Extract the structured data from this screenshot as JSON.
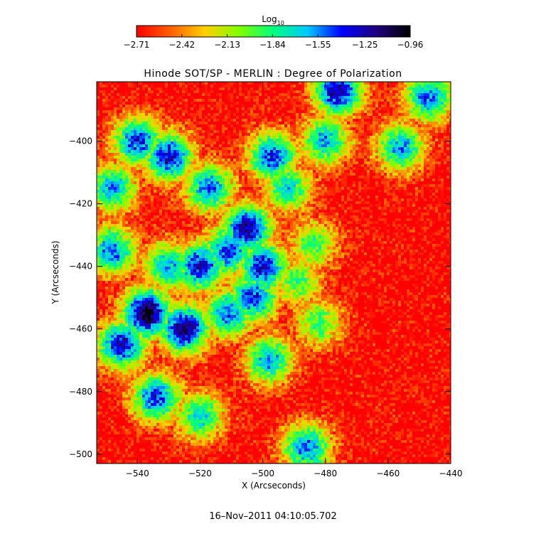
{
  "chart_data": {
    "type": "heatmap",
    "title": "Hinode SOT/SP - MERLIN : Degree of Polarization",
    "xlabel": "X (Arcseconds)",
    "ylabel": "Y (Arcseconds)",
    "xlim": [
      -553,
      -440
    ],
    "ylim": [
      -503,
      -381
    ],
    "x_ticks": [
      -540,
      -520,
      -500,
      -480,
      -460,
      -440
    ],
    "x_tick_labels": [
      "−540",
      "−520",
      "−500",
      "−480",
      "−460",
      "−440"
    ],
    "y_ticks": [
      -400,
      -420,
      -440,
      -460,
      -480,
      -500
    ],
    "y_tick_labels": [
      "−400",
      "−420",
      "−440",
      "−460",
      "−480",
      "−500"
    ],
    "colorbar": {
      "label_base": "Log",
      "label_sub": "10",
      "range": [
        -2.71,
        -0.96
      ],
      "ticks": [
        -2.71,
        -2.42,
        -2.13,
        -1.84,
        -1.55,
        -1.25,
        -0.96
      ],
      "tick_labels": [
        "−2.71",
        "−2.42",
        "−2.13",
        "−1.84",
        "−1.55",
        "−1.25",
        "−0.96"
      ],
      "colormap": [
        "#ff0000",
        "#ff6000",
        "#ffd000",
        "#80ff00",
        "#00ff80",
        "#00c8ff",
        "#0000ff",
        "#200080",
        "#000000"
      ]
    },
    "timestamp": "16–Nov–2011 04:10:05.702",
    "grid": false,
    "legend": "none",
    "high_polarization_regions": [
      {
        "x": -537,
        "y": -455,
        "value": -1.0
      },
      {
        "x": -525,
        "y": -460,
        "value": -1.1
      },
      {
        "x": -520,
        "y": -440,
        "value": -1.3
      },
      {
        "x": -505,
        "y": -428,
        "value": -1.2
      },
      {
        "x": -500,
        "y": -440,
        "value": -1.3
      },
      {
        "x": -503,
        "y": -450,
        "value": -1.4
      },
      {
        "x": -540,
        "y": -400,
        "value": -1.4
      },
      {
        "x": -530,
        "y": -405,
        "value": -1.3
      },
      {
        "x": -517,
        "y": -415,
        "value": -1.5
      },
      {
        "x": -497,
        "y": -405,
        "value": -1.4
      },
      {
        "x": -548,
        "y": -435,
        "value": -1.5
      },
      {
        "x": -545,
        "y": -465,
        "value": -1.3
      },
      {
        "x": -498,
        "y": -470,
        "value": -1.6
      },
      {
        "x": -492,
        "y": -415,
        "value": -1.7
      },
      {
        "x": -480,
        "y": -400,
        "value": -1.6
      },
      {
        "x": -476,
        "y": -384,
        "value": -1.2
      },
      {
        "x": -456,
        "y": -402,
        "value": -1.6
      },
      {
        "x": -447,
        "y": -386,
        "value": -1.5
      },
      {
        "x": -484,
        "y": -433,
        "value": -1.9
      },
      {
        "x": -489,
        "y": -445,
        "value": -1.9
      },
      {
        "x": -482,
        "y": -458,
        "value": -1.9
      },
      {
        "x": -486,
        "y": -498,
        "value": -1.5
      },
      {
        "x": -534,
        "y": -482,
        "value": -1.4
      },
      {
        "x": -520,
        "y": -488,
        "value": -1.7
      },
      {
        "x": -548,
        "y": -415,
        "value": -1.6
      },
      {
        "x": -530,
        "y": -440,
        "value": -1.6
      },
      {
        "x": -511,
        "y": -435,
        "value": -1.4
      },
      {
        "x": -511,
        "y": -455,
        "value": -1.5
      }
    ]
  }
}
